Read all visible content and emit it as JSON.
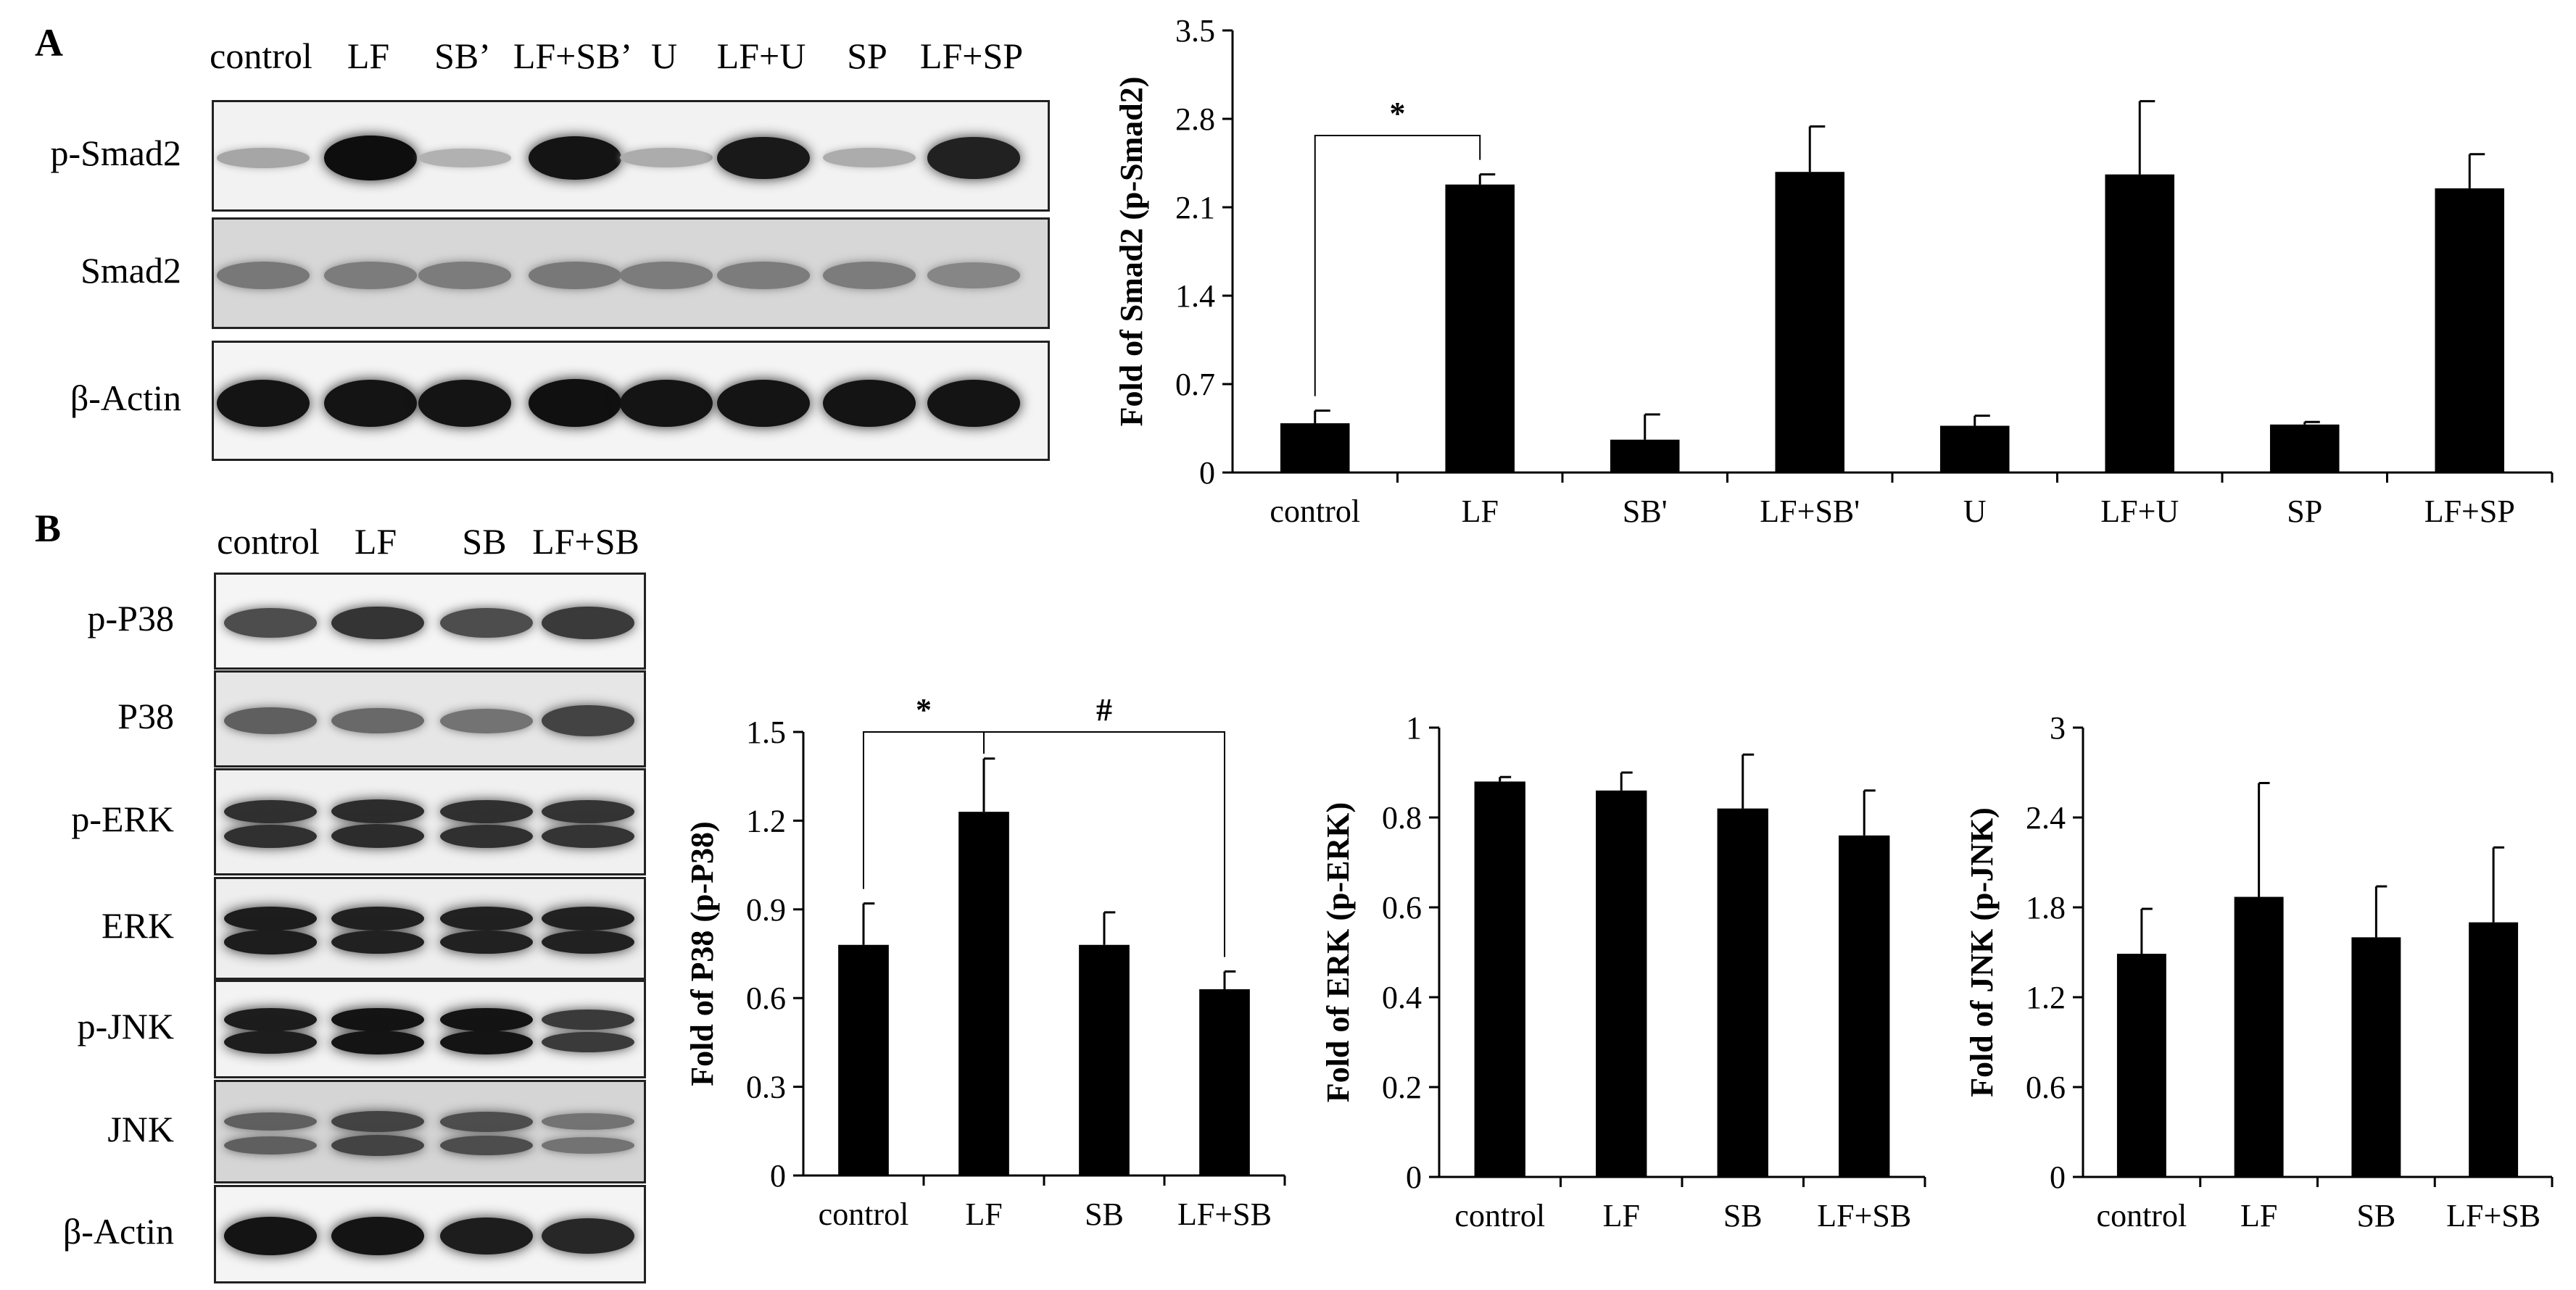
{
  "panel_a_label": "A",
  "panel_b_label": "B",
  "blot_a": {
    "lanes": [
      "control",
      "LF",
      "SB’",
      "LF+SB’",
      "U",
      "LF+U",
      "SP",
      "LF+SP"
    ],
    "rows": [
      "p-Smad2",
      "Smad2",
      "β-Actin"
    ],
    "intensity": [
      [
        0.18,
        0.98,
        0.12,
        0.95,
        0.15,
        0.92,
        0.15,
        0.88
      ],
      [
        0.42,
        0.4,
        0.4,
        0.42,
        0.4,
        0.4,
        0.4,
        0.35
      ],
      [
        0.95,
        0.95,
        0.95,
        0.97,
        0.95,
        0.95,
        0.95,
        0.95
      ]
    ]
  },
  "blot_b": {
    "lanes": [
      "control",
      "LF",
      "SB",
      "LF+SB"
    ],
    "rows": [
      "p-P38",
      "P38",
      "p-ERK",
      "ERK",
      "p-JNK",
      "JNK",
      "β-Actin"
    ],
    "intensity": [
      [
        0.65,
        0.78,
        0.65,
        0.75
      ],
      [
        0.55,
        0.5,
        0.45,
        0.7
      ],
      [
        0.8,
        0.82,
        0.8,
        0.78
      ],
      [
        0.9,
        0.88,
        0.88,
        0.88
      ],
      [
        0.9,
        0.95,
        0.95,
        0.75
      ],
      [
        0.55,
        0.7,
        0.65,
        0.45
      ],
      [
        0.95,
        0.95,
        0.9,
        0.85
      ]
    ]
  },
  "chart_data": [
    {
      "type": "bar",
      "categories": [
        "control",
        "LF",
        "SB'",
        "LF+SB'",
        "U",
        "LF+U",
        "SP",
        "LF+SP"
      ],
      "values": [
        0.39,
        2.28,
        0.26,
        2.38,
        0.37,
        2.36,
        0.38,
        2.25
      ],
      "errors": [
        0.1,
        0.08,
        0.2,
        0.36,
        0.08,
        0.58,
        0.02,
        0.27
      ],
      "ylabel": "Fold of Smad2 (p-Smad2)",
      "ylim": [
        0,
        3.5
      ],
      "yticks": [
        "0",
        "0.7",
        "1.4",
        "2.1",
        "2.8",
        "3.5"
      ],
      "annotations": [
        {
          "text": "*",
          "from": "control",
          "to": "LF"
        }
      ]
    },
    {
      "type": "bar",
      "categories": [
        "control",
        "LF",
        "SB",
        "LF+SB"
      ],
      "values": [
        0.78,
        1.23,
        0.78,
        0.63
      ],
      "errors": [
        0.14,
        0.18,
        0.11,
        0.06
      ],
      "ylabel": "Fold of P38 (p-P38)",
      "ylim": [
        0,
        1.5
      ],
      "yticks": [
        "0",
        "0.3",
        "0.6",
        "0.9",
        "1.2",
        "1.5"
      ],
      "annotations": [
        {
          "text": "*",
          "from": "control",
          "to": "LF"
        },
        {
          "text": "#",
          "from": "LF",
          "to": "LF+SB"
        }
      ]
    },
    {
      "type": "bar",
      "categories": [
        "control",
        "LF",
        "SB",
        "LF+SB"
      ],
      "values": [
        0.88,
        0.86,
        0.82,
        0.76
      ],
      "errors": [
        0.01,
        0.04,
        0.12,
        0.1
      ],
      "ylabel": "Fold of ERK (p-ERK)",
      "ylim": [
        0,
        1
      ],
      "yticks": [
        "0",
        "0.2",
        "0.4",
        "0.6",
        "0.8",
        "1"
      ],
      "annotations": []
    },
    {
      "type": "bar",
      "categories": [
        "control",
        "LF",
        "SB",
        "LF+SB"
      ],
      "values": [
        1.49,
        1.87,
        1.6,
        1.7
      ],
      "errors": [
        0.3,
        0.76,
        0.34,
        0.5
      ],
      "ylabel": "Fold of JNK (p-JNK)",
      "ylim": [
        0,
        3
      ],
      "yticks": [
        "0",
        "0.6",
        "1.2",
        "1.8",
        "2.4",
        "3"
      ],
      "annotations": []
    }
  ]
}
